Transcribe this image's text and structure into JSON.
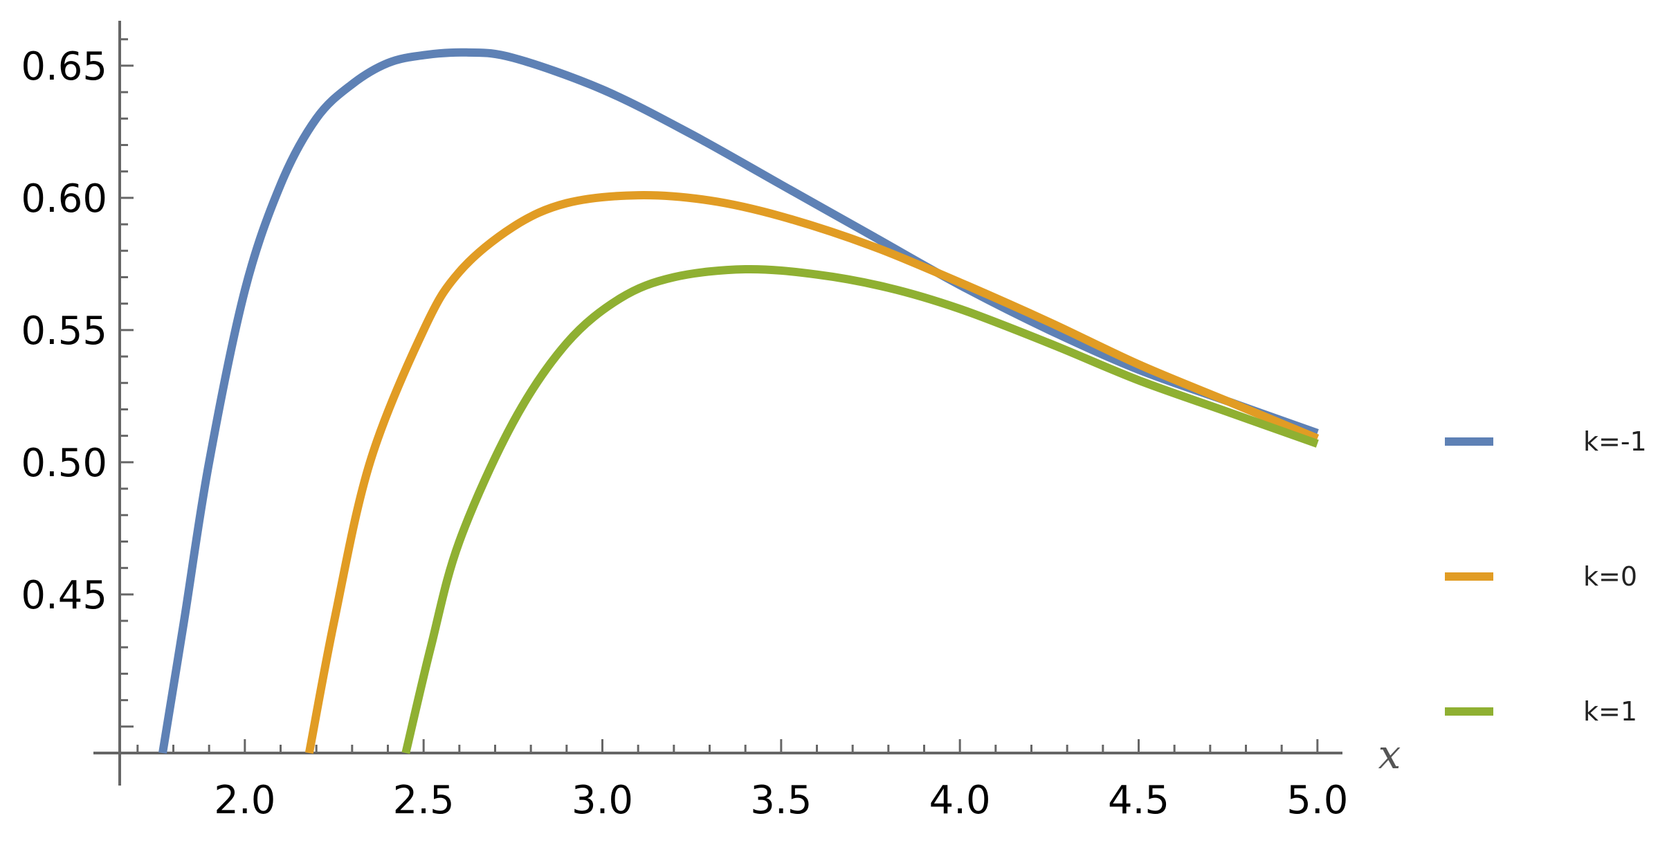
{
  "chart_data": {
    "type": "line",
    "title": "",
    "xlabel": "x",
    "ylabel": "",
    "xlim": [
      1.65,
      5.07
    ],
    "ylim": [
      0.39,
      0.667
    ],
    "x_ticks": [
      "2.0",
      "2.5",
      "3.0",
      "3.5",
      "4.0",
      "4.5",
      "5.0"
    ],
    "y_ticks": [
      "0.45",
      "0.50",
      "0.55",
      "0.60",
      "0.65"
    ],
    "x_tick_values": [
      2.0,
      2.5,
      3.0,
      3.5,
      4.0,
      4.5,
      5.0
    ],
    "y_tick_values": [
      0.45,
      0.5,
      0.55,
      0.6,
      0.65
    ],
    "legend_position": "right",
    "grid": false,
    "series": [
      {
        "name": "k=-1",
        "color": "#5e81b5",
        "points": [
          [
            1.77,
            0.39
          ],
          [
            1.83,
            0.44
          ],
          [
            1.9,
            0.5
          ],
          [
            2.0,
            0.565
          ],
          [
            2.1,
            0.605
          ],
          [
            2.2,
            0.63
          ],
          [
            2.3,
            0.643
          ],
          [
            2.4,
            0.651
          ],
          [
            2.5,
            0.654
          ],
          [
            2.62,
            0.655
          ],
          [
            2.75,
            0.653
          ],
          [
            3.0,
            0.641
          ],
          [
            3.25,
            0.624
          ],
          [
            3.5,
            0.605
          ],
          [
            3.75,
            0.586
          ],
          [
            4.0,
            0.567
          ],
          [
            4.25,
            0.55
          ],
          [
            4.5,
            0.535
          ],
          [
            4.75,
            0.523
          ],
          [
            5.0,
            0.511
          ]
        ]
      },
      {
        "name": "k=0",
        "color": "#e19c24",
        "points": [
          [
            2.18,
            0.39
          ],
          [
            2.25,
            0.44
          ],
          [
            2.35,
            0.5
          ],
          [
            2.5,
            0.55
          ],
          [
            2.6,
            0.572
          ],
          [
            2.75,
            0.589
          ],
          [
            2.9,
            0.598
          ],
          [
            3.1,
            0.601
          ],
          [
            3.3,
            0.599
          ],
          [
            3.5,
            0.593
          ],
          [
            3.75,
            0.582
          ],
          [
            4.0,
            0.568
          ],
          [
            4.25,
            0.553
          ],
          [
            4.5,
            0.537
          ],
          [
            4.75,
            0.523
          ],
          [
            5.0,
            0.509
          ]
        ]
      },
      {
        "name": "k=1",
        "color": "#8fb032",
        "points": [
          [
            2.45,
            0.39
          ],
          [
            2.52,
            0.43
          ],
          [
            2.6,
            0.47
          ],
          [
            2.75,
            0.515
          ],
          [
            2.9,
            0.545
          ],
          [
            3.05,
            0.562
          ],
          [
            3.2,
            0.57
          ],
          [
            3.4,
            0.573
          ],
          [
            3.6,
            0.571
          ],
          [
            3.8,
            0.566
          ],
          [
            4.0,
            0.558
          ],
          [
            4.25,
            0.545
          ],
          [
            4.5,
            0.531
          ],
          [
            4.75,
            0.519
          ],
          [
            5.0,
            0.507
          ]
        ]
      }
    ]
  }
}
